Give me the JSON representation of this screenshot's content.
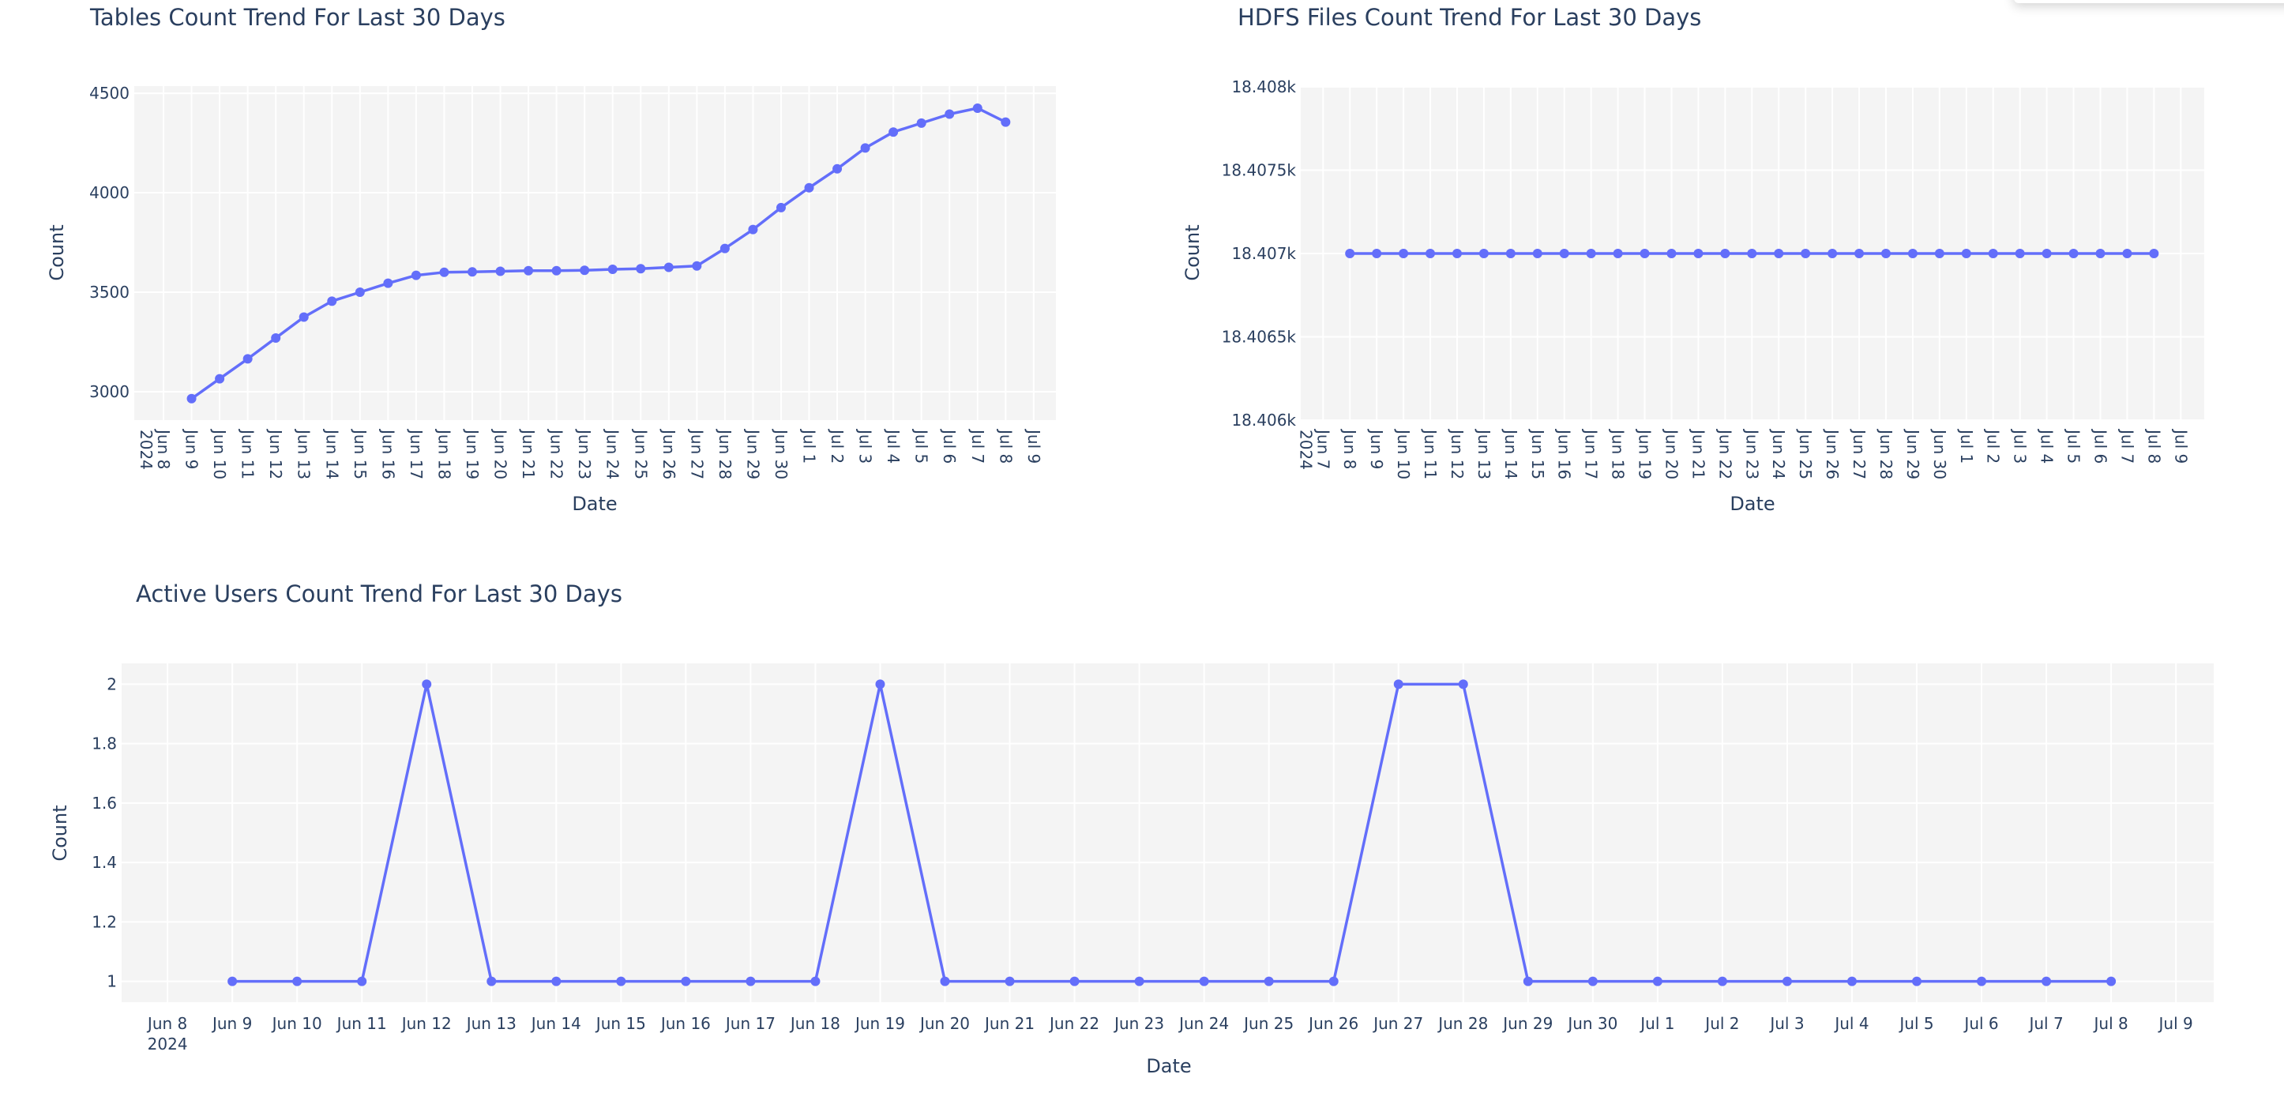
{
  "colors": {
    "line": "#636efa",
    "plot_bg": "#f4f4f4",
    "grid": "#ffffff",
    "text": "#2a3f5f"
  },
  "chart_data": [
    {
      "id": "tables",
      "type": "line",
      "title": "Tables Count Trend For Last 30 Days",
      "xlabel": "Date",
      "ylabel": "Count",
      "xlim": [
        "2024-06-06T23:00:00Z",
        "2024-07-09T19:00:00Z"
      ],
      "ylim": [
        2857,
        4536
      ],
      "tick_rotation": "vertical",
      "yticks": [
        {
          "value": 3000,
          "label": "3000"
        },
        {
          "value": 3500,
          "label": "3500"
        },
        {
          "value": 4000,
          "label": "4000"
        },
        {
          "value": 4500,
          "label": "4500"
        }
      ],
      "xticks": [
        {
          "date": "2024-06-08",
          "label": "Jun 8",
          "sub": "2024"
        },
        {
          "date": "2024-06-09",
          "label": "Jun 9"
        },
        {
          "date": "2024-06-10",
          "label": "Jun 10"
        },
        {
          "date": "2024-06-11",
          "label": "Jun 11"
        },
        {
          "date": "2024-06-12",
          "label": "Jun 12"
        },
        {
          "date": "2024-06-13",
          "label": "Jun 13"
        },
        {
          "date": "2024-06-14",
          "label": "Jun 14"
        },
        {
          "date": "2024-06-15",
          "label": "Jun 15"
        },
        {
          "date": "2024-06-16",
          "label": "Jun 16"
        },
        {
          "date": "2024-06-17",
          "label": "Jun 17"
        },
        {
          "date": "2024-06-18",
          "label": "Jun 18"
        },
        {
          "date": "2024-06-19",
          "label": "Jun 19"
        },
        {
          "date": "2024-06-20",
          "label": "Jun 20"
        },
        {
          "date": "2024-06-21",
          "label": "Jun 21"
        },
        {
          "date": "2024-06-22",
          "label": "Jun 22"
        },
        {
          "date": "2024-06-23",
          "label": "Jun 23"
        },
        {
          "date": "2024-06-24",
          "label": "Jun 24"
        },
        {
          "date": "2024-06-25",
          "label": "Jun 25"
        },
        {
          "date": "2024-06-26",
          "label": "Jun 26"
        },
        {
          "date": "2024-06-27",
          "label": "Jun 27"
        },
        {
          "date": "2024-06-28",
          "label": "Jun 28"
        },
        {
          "date": "2024-06-29",
          "label": "Jun 29"
        },
        {
          "date": "2024-06-30",
          "label": "Jun 30"
        },
        {
          "date": "2024-07-01",
          "label": "Jul 1"
        },
        {
          "date": "2024-07-02",
          "label": "Jul 2"
        },
        {
          "date": "2024-07-03",
          "label": "Jul 3"
        },
        {
          "date": "2024-07-04",
          "label": "Jul 4"
        },
        {
          "date": "2024-07-05",
          "label": "Jul 5"
        },
        {
          "date": "2024-07-06",
          "label": "Jul 6"
        },
        {
          "date": "2024-07-07",
          "label": "Jul 7"
        },
        {
          "date": "2024-07-08",
          "label": "Jul 8"
        },
        {
          "date": "2024-07-09",
          "label": "Jul 9"
        }
      ],
      "x_start": "2024-06-09",
      "values": [
        2965,
        3065,
        3165,
        3270,
        3375,
        3455,
        3500,
        3545,
        3585,
        3600,
        3602,
        3605,
        3608,
        3608,
        3610,
        3615,
        3618,
        3625,
        3632,
        3720,
        3815,
        3925,
        4025,
        4120,
        4225,
        4305,
        4350,
        4395,
        4425,
        4355
      ]
    },
    {
      "id": "hdfs",
      "type": "line",
      "title": "HDFS Files Count Trend For Last 30 Days",
      "xlabel": "Date",
      "ylabel": "Count",
      "xlim": [
        "2024-06-06T04:00:00Z",
        "2024-07-09T21:00:00Z"
      ],
      "ylim": [
        18406,
        18408
      ],
      "tick_rotation": "vertical",
      "yticks": [
        {
          "value": 18406,
          "label": "18.406k"
        },
        {
          "value": 18406.5,
          "label": "18.4065k"
        },
        {
          "value": 18407,
          "label": "18.407k"
        },
        {
          "value": 18407.5,
          "label": "18.4075k"
        },
        {
          "value": 18408,
          "label": "18.408k"
        }
      ],
      "xticks": [
        {
          "date": "2024-06-07",
          "label": "Jun 7",
          "sub": "2024"
        },
        {
          "date": "2024-06-08",
          "label": "Jun 8"
        },
        {
          "date": "2024-06-09",
          "label": "Jun 9"
        },
        {
          "date": "2024-06-10",
          "label": "Jun 10"
        },
        {
          "date": "2024-06-11",
          "label": "Jun 11"
        },
        {
          "date": "2024-06-12",
          "label": "Jun 12"
        },
        {
          "date": "2024-06-13",
          "label": "Jun 13"
        },
        {
          "date": "2024-06-14",
          "label": "Jun 14"
        },
        {
          "date": "2024-06-15",
          "label": "Jun 15"
        },
        {
          "date": "2024-06-16",
          "label": "Jun 16"
        },
        {
          "date": "2024-06-17",
          "label": "Jun 17"
        },
        {
          "date": "2024-06-18",
          "label": "Jun 18"
        },
        {
          "date": "2024-06-19",
          "label": "Jun 19"
        },
        {
          "date": "2024-06-20",
          "label": "Jun 20"
        },
        {
          "date": "2024-06-21",
          "label": "Jun 21"
        },
        {
          "date": "2024-06-22",
          "label": "Jun 22"
        },
        {
          "date": "2024-06-23",
          "label": "Jun 23"
        },
        {
          "date": "2024-06-24",
          "label": "Jun 24"
        },
        {
          "date": "2024-06-25",
          "label": "Jun 25"
        },
        {
          "date": "2024-06-26",
          "label": "Jun 26"
        },
        {
          "date": "2024-06-27",
          "label": "Jun 27"
        },
        {
          "date": "2024-06-28",
          "label": "Jun 28"
        },
        {
          "date": "2024-06-29",
          "label": "Jun 29"
        },
        {
          "date": "2024-06-30",
          "label": "Jun 30"
        },
        {
          "date": "2024-07-01",
          "label": "Jul 1"
        },
        {
          "date": "2024-07-02",
          "label": "Jul 2"
        },
        {
          "date": "2024-07-03",
          "label": "Jul 3"
        },
        {
          "date": "2024-07-04",
          "label": "Jul 4"
        },
        {
          "date": "2024-07-05",
          "label": "Jul 5"
        },
        {
          "date": "2024-07-06",
          "label": "Jul 6"
        },
        {
          "date": "2024-07-07",
          "label": "Jul 7"
        },
        {
          "date": "2024-07-08",
          "label": "Jul 8"
        },
        {
          "date": "2024-07-09",
          "label": "Jul 9"
        }
      ],
      "x_start": "2024-06-08",
      "values": [
        18407,
        18407,
        18407,
        18407,
        18407,
        18407,
        18407,
        18407,
        18407,
        18407,
        18407,
        18407,
        18407,
        18407,
        18407,
        18407,
        18407,
        18407,
        18407,
        18407,
        18407,
        18407,
        18407,
        18407,
        18407,
        18407,
        18407,
        18407,
        18407,
        18407,
        18407
      ]
    },
    {
      "id": "users",
      "type": "line",
      "title": "Active Users Count Trend For Last 30 Days",
      "xlabel": "Date",
      "ylabel": "Count",
      "xlim": [
        "2024-06-07T07:00:00Z",
        "2024-07-09T14:00:00Z"
      ],
      "ylim": [
        0.93,
        2.07
      ],
      "tick_rotation": "horizontal",
      "yticks": [
        {
          "value": 1,
          "label": "1"
        },
        {
          "value": 1.2,
          "label": "1.2"
        },
        {
          "value": 1.4,
          "label": "1.4"
        },
        {
          "value": 1.6,
          "label": "1.6"
        },
        {
          "value": 1.8,
          "label": "1.8"
        },
        {
          "value": 2,
          "label": "2"
        }
      ],
      "xticks": [
        {
          "date": "2024-06-08",
          "label": "Jun 8",
          "sub": "2024"
        },
        {
          "date": "2024-06-09",
          "label": "Jun 9"
        },
        {
          "date": "2024-06-10",
          "label": "Jun 10"
        },
        {
          "date": "2024-06-11",
          "label": "Jun 11"
        },
        {
          "date": "2024-06-12",
          "label": "Jun 12"
        },
        {
          "date": "2024-06-13",
          "label": "Jun 13"
        },
        {
          "date": "2024-06-14",
          "label": "Jun 14"
        },
        {
          "date": "2024-06-15",
          "label": "Jun 15"
        },
        {
          "date": "2024-06-16",
          "label": "Jun 16"
        },
        {
          "date": "2024-06-17",
          "label": "Jun 17"
        },
        {
          "date": "2024-06-18",
          "label": "Jun 18"
        },
        {
          "date": "2024-06-19",
          "label": "Jun 19"
        },
        {
          "date": "2024-06-20",
          "label": "Jun 20"
        },
        {
          "date": "2024-06-21",
          "label": "Jun 21"
        },
        {
          "date": "2024-06-22",
          "label": "Jun 22"
        },
        {
          "date": "2024-06-23",
          "label": "Jun 23"
        },
        {
          "date": "2024-06-24",
          "label": "Jun 24"
        },
        {
          "date": "2024-06-25",
          "label": "Jun 25"
        },
        {
          "date": "2024-06-26",
          "label": "Jun 26"
        },
        {
          "date": "2024-06-27",
          "label": "Jun 27"
        },
        {
          "date": "2024-06-28",
          "label": "Jun 28"
        },
        {
          "date": "2024-06-29",
          "label": "Jun 29"
        },
        {
          "date": "2024-06-30",
          "label": "Jun 30"
        },
        {
          "date": "2024-07-01",
          "label": "Jul 1"
        },
        {
          "date": "2024-07-02",
          "label": "Jul 2"
        },
        {
          "date": "2024-07-03",
          "label": "Jul 3"
        },
        {
          "date": "2024-07-04",
          "label": "Jul 4"
        },
        {
          "date": "2024-07-05",
          "label": "Jul 5"
        },
        {
          "date": "2024-07-06",
          "label": "Jul 6"
        },
        {
          "date": "2024-07-07",
          "label": "Jul 7"
        },
        {
          "date": "2024-07-08",
          "label": "Jul 8"
        },
        {
          "date": "2024-07-09",
          "label": "Jul 9"
        }
      ],
      "x_start": "2024-06-09",
      "values": [
        1,
        1,
        1,
        2,
        1,
        1,
        1,
        1,
        1,
        1,
        2,
        1,
        1,
        1,
        1,
        1,
        1,
        1,
        2,
        2,
        1,
        1,
        1,
        1,
        1,
        1,
        1,
        1,
        1,
        1
      ]
    }
  ]
}
